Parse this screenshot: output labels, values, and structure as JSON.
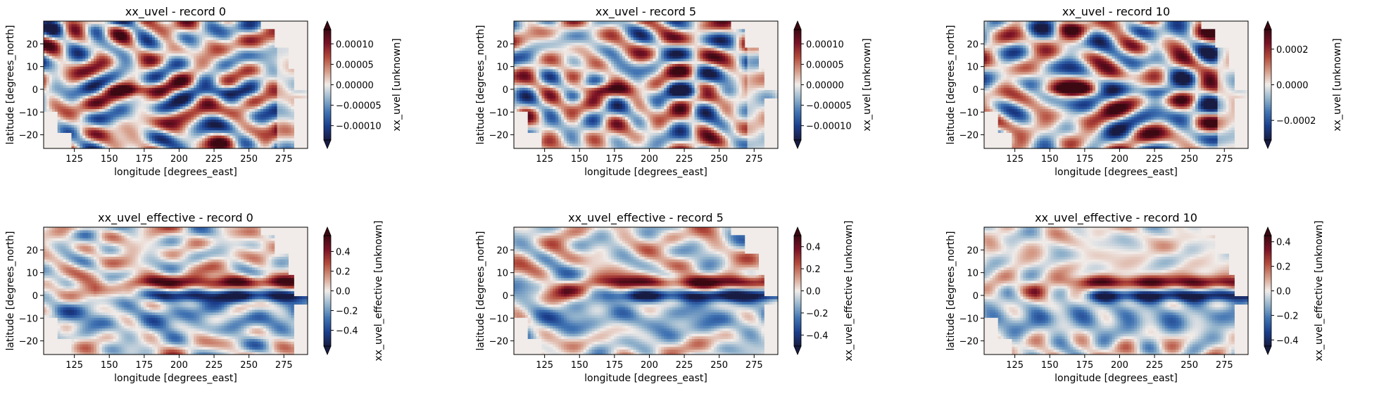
{
  "colormap": "balance",
  "colormap_stops": [
    "#181c43",
    "#1b3e8c",
    "#3f72b2",
    "#94b4cc",
    "#f1ece9",
    "#d49a86",
    "#b34a3b",
    "#7a1226",
    "#3c0912"
  ],
  "land_color": "#f1ece9",
  "chart_data": [
    {
      "type": "heatmap",
      "title": "xx_uvel - record 0",
      "xlabel": "longitude [degrees_east]",
      "ylabel": "latitude [degrees_north]",
      "xlim": [
        103,
        292
      ],
      "ylim": [
        -26,
        30
      ],
      "xticks": [
        125,
        150,
        175,
        200,
        225,
        250,
        275
      ],
      "yticks": [
        -20,
        -10,
        0,
        10,
        20
      ],
      "colorbar": {
        "label": "xx_uvel [unknown]",
        "vmin": -0.000135,
        "vmax": 0.000135,
        "ticks": [
          -0.0001,
          -5e-05,
          0.0,
          5e-05,
          0.0001
        ],
        "ticklabels": [
          "−0.00010",
          "−0.00005",
          "0.00000",
          "0.00005",
          "0.00010"
        ],
        "extend": "both"
      },
      "variant": "uvel",
      "seed": 11
    },
    {
      "type": "heatmap",
      "title": "xx_uvel - record 5",
      "xlabel": "longitude [degrees_east]",
      "ylabel": "latitude [degrees_north]",
      "xlim": [
        103,
        292
      ],
      "ylim": [
        -26,
        30
      ],
      "xticks": [
        125,
        150,
        175,
        200,
        225,
        250,
        275
      ],
      "yticks": [
        -20,
        -10,
        0,
        10,
        20
      ],
      "colorbar": {
        "label": "xx_uvel [unknown]",
        "vmin": -0.000135,
        "vmax": 0.000135,
        "ticks": [
          -0.0001,
          -5e-05,
          0.0,
          5e-05,
          0.0001
        ],
        "ticklabels": [
          "−0.00010",
          "−0.00005",
          "0.00000",
          "0.00005",
          "0.00010"
        ],
        "extend": "both"
      },
      "variant": "uvel",
      "seed": 23
    },
    {
      "type": "heatmap",
      "title": "xx_uvel - record 10",
      "xlabel": "longitude [degrees_east]",
      "ylabel": "latitude [degrees_north]",
      "xlim": [
        103,
        292
      ],
      "ylim": [
        -26,
        30
      ],
      "xticks": [
        125,
        150,
        175,
        200,
        225,
        250,
        275
      ],
      "yticks": [
        -20,
        -10,
        0,
        10,
        20
      ],
      "colorbar": {
        "label": "xx_uvel [unknown]",
        "vmin": -0.00031,
        "vmax": 0.00031,
        "ticks": [
          -0.0002,
          0.0,
          0.0002
        ],
        "ticklabels": [
          "−0.0002",
          "0.0000",
          "0.0002"
        ],
        "extend": "both"
      },
      "variant": "uvel",
      "seed": 37
    },
    {
      "type": "heatmap",
      "title": "xx_uvel_effective - record 0",
      "xlabel": "longitude [degrees_east]",
      "ylabel": "latitude [degrees_north]",
      "xlim": [
        103,
        292
      ],
      "ylim": [
        -26,
        30
      ],
      "xticks": [
        125,
        150,
        175,
        200,
        225,
        250,
        275
      ],
      "yticks": [
        -20,
        -10,
        0,
        10,
        20
      ],
      "colorbar": {
        "label": "xx_uvel_effective [unknown]",
        "vmin": -0.56,
        "vmax": 0.56,
        "ticks": [
          -0.4,
          -0.2,
          0.0,
          0.2,
          0.4
        ],
        "ticklabels": [
          "−0.4",
          "−0.2",
          "0.0",
          "0.2",
          "0.4"
        ],
        "extend": "both"
      },
      "variant": "effective",
      "seed": 41
    },
    {
      "type": "heatmap",
      "title": "xx_uvel_effective - record 5",
      "xlabel": "longitude [degrees_east]",
      "ylabel": "latitude [degrees_north]",
      "xlim": [
        103,
        292
      ],
      "ylim": [
        -26,
        30
      ],
      "xticks": [
        125,
        150,
        175,
        200,
        225,
        250,
        275
      ],
      "yticks": [
        -20,
        -10,
        0,
        10,
        20
      ],
      "colorbar": {
        "label": "xx_uvel_effective [unknown]",
        "vmin": -0.5,
        "vmax": 0.5,
        "ticks": [
          -0.4,
          -0.2,
          0.0,
          0.2,
          0.4
        ],
        "ticklabels": [
          "−0.4",
          "−0.2",
          "0.0",
          "0.2",
          "0.4"
        ],
        "extend": "both"
      },
      "variant": "effective",
      "seed": 53
    },
    {
      "type": "heatmap",
      "title": "xx_uvel_effective - record 10",
      "xlabel": "longitude [degrees_east]",
      "ylabel": "latitude [degrees_north]",
      "xlim": [
        103,
        292
      ],
      "ylim": [
        -26,
        30
      ],
      "xticks": [
        125,
        150,
        175,
        200,
        225,
        250,
        275
      ],
      "yticks": [
        -20,
        -10,
        0,
        10,
        20
      ],
      "colorbar": {
        "label": "xx_uvel_effective [unknown]",
        "vmin": -0.45,
        "vmax": 0.45,
        "ticks": [
          -0.4,
          -0.2,
          0.0,
          0.2,
          0.4
        ],
        "ticklabels": [
          "−0.4",
          "−0.2",
          "0.0",
          "0.2",
          "0.4"
        ],
        "extend": "both"
      },
      "variant": "effective",
      "seed": 67
    }
  ]
}
